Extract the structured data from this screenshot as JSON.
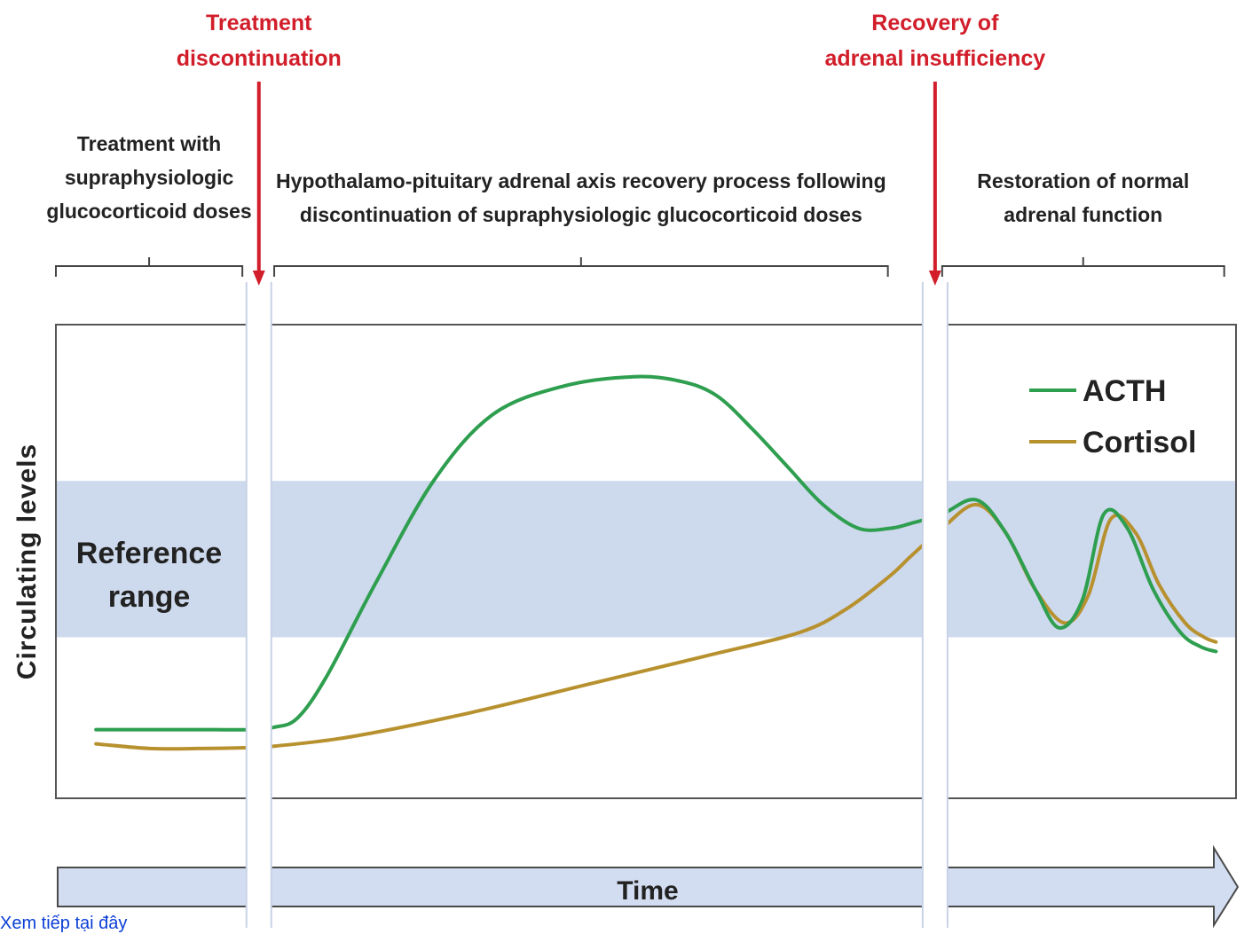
{
  "chart_data": {
    "type": "line",
    "ylabel": "Circulating levels",
    "time_label": "Time",
    "reference_band": {
      "label_lines": [
        "Reference",
        "range"
      ],
      "color": "#cdd9ec",
      "range": [
        0.34,
        0.67
      ]
    },
    "ylim": [
      0,
      1
    ],
    "xlim": [
      0,
      100
    ],
    "events": [
      {
        "label_lines": [
          "Treatment",
          "discontinuation"
        ],
        "x": 17.2,
        "color": "#d11e2a"
      },
      {
        "label_lines": [
          "Recovery of",
          "adrenal insufficiency"
        ],
        "x": 74.5,
        "color": "#d11e2a"
      }
    ],
    "phases": [
      {
        "label_lines": [
          "Treatment with",
          "supraphysiologic",
          "glucocorticoid doses"
        ],
        "range": [
          0,
          15.8
        ]
      },
      {
        "label_lines": [
          "Hypothalamo-pituitary adrenal axis recovery process following",
          "discontinuation of supraphysiologic glucocorticoid doses"
        ],
        "range": [
          18.5,
          70.5
        ]
      },
      {
        "label_lines": [
          "Restoration of normal",
          "adrenal function"
        ],
        "range": [
          75.1,
          99
        ]
      }
    ],
    "series": [
      {
        "name": "ACTH",
        "color": "#2e9e4f",
        "points": [
          [
            3.4,
            0.145
          ],
          [
            8,
            0.145
          ],
          [
            12,
            0.145
          ],
          [
            16.3,
            0.145
          ],
          [
            18.5,
            0.15
          ],
          [
            20.5,
            0.17
          ],
          [
            23,
            0.26
          ],
          [
            27,
            0.45
          ],
          [
            32,
            0.67
          ],
          [
            37,
            0.81
          ],
          [
            43,
            0.87
          ],
          [
            49,
            0.89
          ],
          [
            53,
            0.88
          ],
          [
            56,
            0.85
          ],
          [
            59,
            0.78
          ],
          [
            62,
            0.7
          ],
          [
            65,
            0.62
          ],
          [
            68,
            0.57
          ],
          [
            70.7,
            0.57
          ],
          [
            72.4,
            0.58
          ],
          [
            75.1,
            0.6
          ],
          [
            78,
            0.63
          ],
          [
            80.5,
            0.56
          ],
          [
            83,
            0.44
          ],
          [
            85,
            0.36
          ],
          [
            87,
            0.42
          ],
          [
            88.8,
            0.6
          ],
          [
            90.8,
            0.57
          ],
          [
            93,
            0.44
          ],
          [
            95.3,
            0.35
          ],
          [
            97,
            0.32
          ],
          [
            98.3,
            0.31
          ]
        ]
      },
      {
        "name": "Cortisol",
        "color": "#b8912f",
        "points": [
          [
            3.4,
            0.115
          ],
          [
            8,
            0.105
          ],
          [
            12,
            0.105
          ],
          [
            16.3,
            0.107
          ],
          [
            18.5,
            0.11
          ],
          [
            25,
            0.13
          ],
          [
            35,
            0.18
          ],
          [
            45,
            0.24
          ],
          [
            55,
            0.3
          ],
          [
            63,
            0.35
          ],
          [
            67,
            0.4
          ],
          [
            70.7,
            0.47
          ],
          [
            72.4,
            0.51
          ],
          [
            75.1,
            0.57
          ],
          [
            78,
            0.62
          ],
          [
            80.5,
            0.56
          ],
          [
            83,
            0.44
          ],
          [
            85.5,
            0.37
          ],
          [
            87.5,
            0.43
          ],
          [
            89.4,
            0.59
          ],
          [
            91.5,
            0.56
          ],
          [
            93.5,
            0.45
          ],
          [
            95.7,
            0.37
          ],
          [
            97.3,
            0.34
          ],
          [
            98.3,
            0.33
          ]
        ]
      }
    ]
  },
  "footer_link": "Xem tiếp tại đây"
}
